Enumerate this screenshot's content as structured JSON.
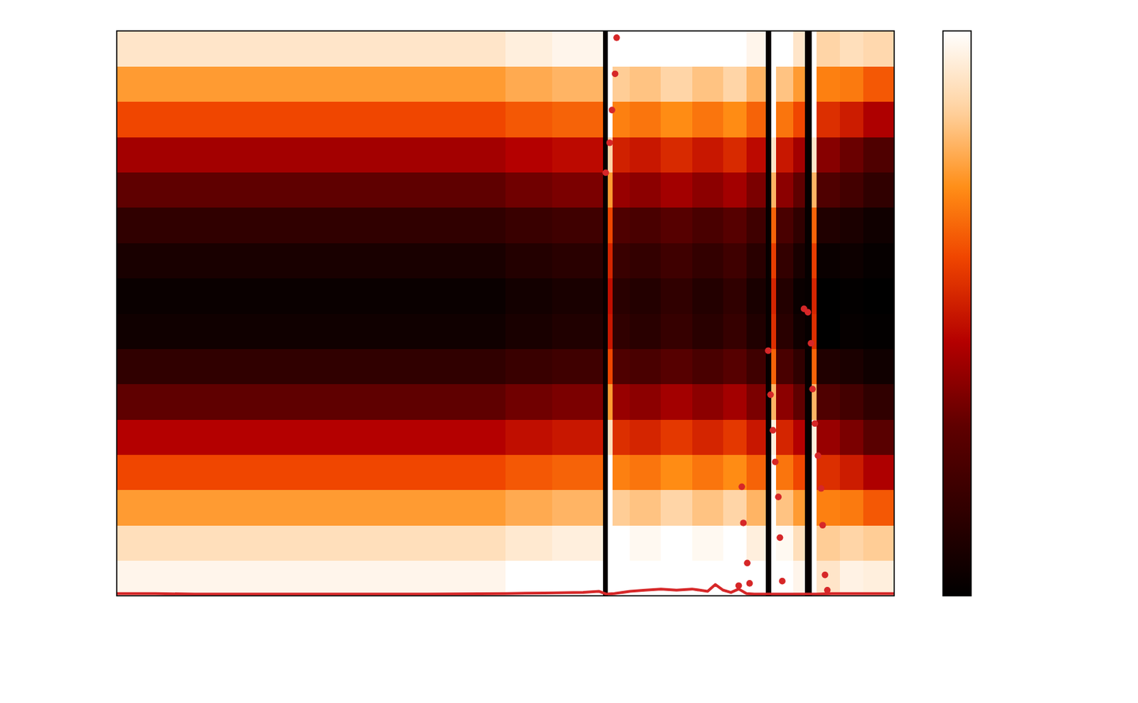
{
  "chart_data": {
    "type": "heatmap",
    "tick_labels": false,
    "xlim": [
      0,
      1
    ],
    "ylim": [
      0,
      1
    ],
    "colorbar_range": [
      0,
      1
    ],
    "x_edges": [
      0,
      0.2,
      0.4,
      0.5,
      0.56,
      0.6,
      0.625,
      0.632,
      0.638,
      0.66,
      0.7,
      0.74,
      0.78,
      0.81,
      0.835,
      0.842,
      0.848,
      0.87,
      0.885,
      0.894,
      0.9,
      0.93,
      0.96,
      1.0
    ],
    "y_edges": [
      0,
      0.0625,
      0.125,
      0.1875,
      0.25,
      0.3125,
      0.375,
      0.4375,
      0.5,
      0.5625,
      0.625,
      0.6875,
      0.75,
      0.8125,
      0.875,
      0.9375,
      1.0
    ],
    "cells": [
      [
        0.97,
        0.97,
        0.97,
        1,
        1,
        1,
        0.02,
        1,
        1,
        1,
        1,
        1,
        1,
        1,
        0.02,
        1,
        1,
        0.97,
        0.02,
        1,
        0.92,
        0.96,
        0.95
      ],
      [
        0.9,
        0.9,
        0.9,
        0.93,
        0.95,
        0.95,
        0.02,
        1,
        1,
        0.98,
        1,
        0.98,
        1,
        0.95,
        0.02,
        1,
        0.98,
        0.9,
        0.02,
        1,
        0.85,
        0.87,
        0.85
      ],
      [
        0.75,
        0.75,
        0.75,
        0.78,
        0.8,
        0.8,
        0.02,
        1,
        0.85,
        0.83,
        0.87,
        0.83,
        0.87,
        0.8,
        0.02,
        1,
        0.83,
        0.75,
        0.02,
        1,
        0.7,
        0.69,
        0.63
      ],
      [
        0.6,
        0.6,
        0.6,
        0.63,
        0.65,
        0.65,
        0.02,
        1,
        0.7,
        0.68,
        0.72,
        0.68,
        0.72,
        0.65,
        0.02,
        1,
        0.68,
        0.6,
        0.02,
        1,
        0.55,
        0.51,
        0.44
      ],
      [
        0.45,
        0.45,
        0.45,
        0.48,
        0.5,
        0.5,
        0.02,
        0.9,
        0.55,
        0.53,
        0.57,
        0.53,
        0.57,
        0.5,
        0.02,
        0.95,
        0.53,
        0.45,
        0.02,
        0.95,
        0.4,
        0.35,
        0.28
      ],
      [
        0.3,
        0.3,
        0.3,
        0.33,
        0.35,
        0.35,
        0.02,
        0.75,
        0.4,
        0.38,
        0.42,
        0.38,
        0.42,
        0.35,
        0.02,
        0.8,
        0.38,
        0.3,
        0.02,
        0.8,
        0.25,
        0.21,
        0.15
      ],
      [
        0.15,
        0.15,
        0.15,
        0.18,
        0.2,
        0.2,
        0.02,
        0.6,
        0.25,
        0.23,
        0.27,
        0.23,
        0.27,
        0.2,
        0.02,
        0.65,
        0.23,
        0.15,
        0.02,
        0.65,
        0.1,
        0.085,
        0.05
      ],
      [
        0.05,
        0.05,
        0.05,
        0.08,
        0.1,
        0.1,
        0.02,
        0.5,
        0.15,
        0.13,
        0.17,
        0.13,
        0.17,
        0.1,
        0.02,
        0.55,
        0.13,
        0.05,
        0.02,
        0.55,
        0,
        0.02,
        0.01
      ],
      [
        0.03,
        0.03,
        0.03,
        0.06,
        0.08,
        0.08,
        0.02,
        0.48,
        0.13,
        0.11,
        0.15,
        0.11,
        0.15,
        0.08,
        0.02,
        0.53,
        0.11,
        0.03,
        0.02,
        0.53,
        0,
        0.01,
        0
      ],
      [
        0.08,
        0.08,
        0.08,
        0.11,
        0.13,
        0.13,
        0.02,
        0.53,
        0.18,
        0.16,
        0.2,
        0.16,
        0.2,
        0.13,
        0.02,
        0.58,
        0.16,
        0.08,
        0.02,
        0.58,
        0.03,
        0.04,
        0.02
      ],
      [
        0.15,
        0.15,
        0.15,
        0.18,
        0.2,
        0.2,
        0.02,
        0.6,
        0.25,
        0.23,
        0.27,
        0.23,
        0.27,
        0.2,
        0.02,
        0.65,
        0.23,
        0.15,
        0.02,
        0.65,
        0.1,
        0.085,
        0.05
      ],
      [
        0.3,
        0.3,
        0.3,
        0.33,
        0.35,
        0.35,
        0.02,
        0.75,
        0.4,
        0.38,
        0.42,
        0.38,
        0.42,
        0.35,
        0.02,
        0.8,
        0.38,
        0.3,
        0.02,
        0.8,
        0.25,
        0.21,
        0.15
      ],
      [
        0.42,
        0.42,
        0.42,
        0.45,
        0.47,
        0.47,
        0.02,
        0.87,
        0.52,
        0.5,
        0.54,
        0.5,
        0.54,
        0.47,
        0.02,
        0.92,
        0.5,
        0.42,
        0.02,
        0.92,
        0.37,
        0.32,
        0.25
      ],
      [
        0.6,
        0.6,
        0.6,
        0.63,
        0.65,
        0.65,
        0.02,
        1,
        0.7,
        0.68,
        0.72,
        0.68,
        0.72,
        0.65,
        0.02,
        1,
        0.68,
        0.6,
        0.02,
        1,
        0.55,
        0.51,
        0.44
      ],
      [
        0.75,
        0.75,
        0.75,
        0.78,
        0.8,
        0.8,
        0.02,
        1,
        0.85,
        0.83,
        0.87,
        0.83,
        0.87,
        0.8,
        0.02,
        1,
        0.83,
        0.75,
        0.02,
        1,
        0.7,
        0.69,
        0.63
      ],
      [
        0.92,
        0.92,
        0.92,
        0.95,
        0.97,
        0.97,
        0.02,
        1,
        1,
        1,
        1,
        1,
        1,
        0.97,
        0.02,
        1,
        1,
        0.92,
        0.02,
        1,
        0.87,
        0.9,
        0.88
      ]
    ],
    "series": [
      {
        "type": "scatter",
        "marker": "circle",
        "color": "#d62728",
        "x": [
          0.643,
          0.641,
          0.637,
          0.634,
          0.629,
          0.804,
          0.806,
          0.811,
          0.814,
          0.8,
          0.838,
          0.841,
          0.844,
          0.847,
          0.851,
          0.853,
          0.856,
          0.884,
          0.889,
          0.893,
          0.895,
          0.898,
          0.902,
          0.906,
          0.908,
          0.911,
          0.914
        ],
        "y": [
          0.988,
          0.924,
          0.86,
          0.802,
          0.749,
          0.193,
          0.129,
          0.058,
          0.022,
          0.018,
          0.434,
          0.356,
          0.293,
          0.237,
          0.175,
          0.103,
          0.026,
          0.508,
          0.502,
          0.447,
          0.366,
          0.305,
          0.248,
          0.19,
          0.125,
          0.037,
          0.01
        ]
      },
      {
        "type": "line",
        "line_style": "solid",
        "color": "#d62728",
        "x": [
          0,
          0.05,
          0.1,
          0.2,
          0.3,
          0.4,
          0.5,
          0.55,
          0.6,
          0.62,
          0.63,
          0.64,
          0.66,
          0.68,
          0.7,
          0.72,
          0.74,
          0.76,
          0.77,
          0.78,
          0.79,
          0.8,
          0.81,
          0.82,
          0.84,
          0.86,
          0.88,
          0.9,
          0.92,
          0.95,
          1.0
        ],
        "y": [
          0.004,
          0.004,
          0.003,
          0.003,
          0.003,
          0.003,
          0.004,
          0.005,
          0.006,
          0.008,
          0.003,
          0.004,
          0.008,
          0.01,
          0.012,
          0.01,
          0.012,
          0.008,
          0.02,
          0.01,
          0.006,
          0.012,
          0.004,
          0.003,
          0.003,
          0.003,
          0.003,
          0.003,
          0.004,
          0.004,
          0.004
        ]
      }
    ]
  }
}
